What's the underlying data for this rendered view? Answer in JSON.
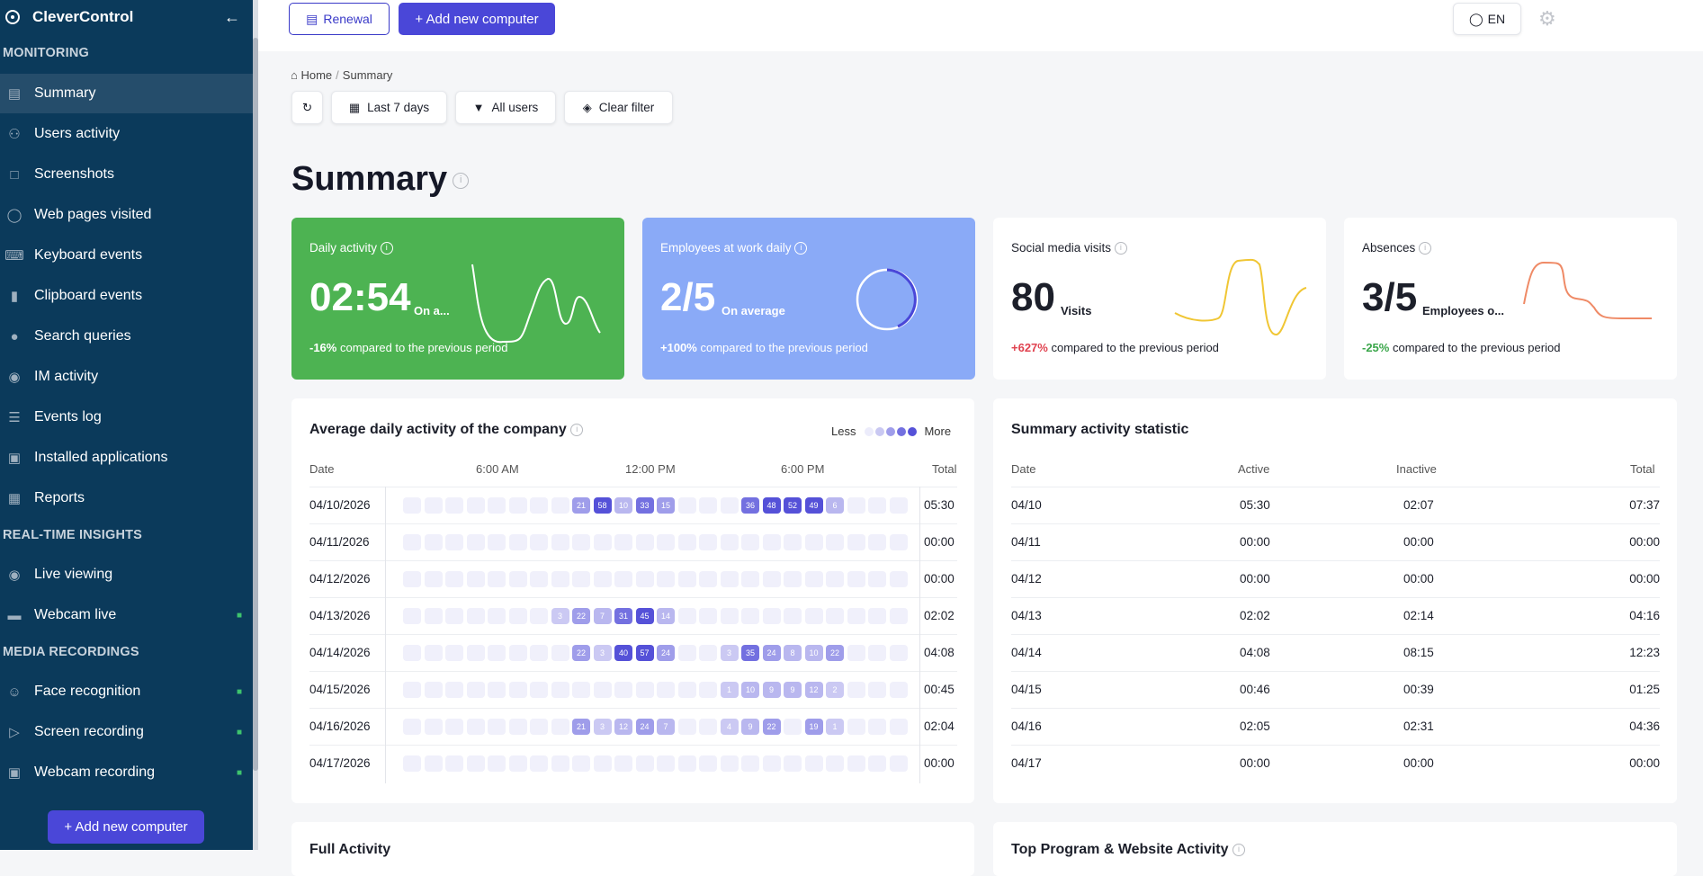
{
  "app": {
    "name": "CleverControl"
  },
  "sidebar": {
    "sections": [
      "MONITORING",
      "REAL-TIME INSIGHTS",
      "MEDIA RECORDINGS"
    ],
    "items": [
      {
        "label": "Summary"
      },
      {
        "label": "Users activity"
      },
      {
        "label": "Screenshots"
      },
      {
        "label": "Web pages visited"
      },
      {
        "label": "Keyboard events"
      },
      {
        "label": "Clipboard events"
      },
      {
        "label": "Search queries"
      },
      {
        "label": "IM activity"
      },
      {
        "label": "Events log"
      },
      {
        "label": "Installed applications"
      },
      {
        "label": "Reports"
      },
      {
        "label": "Live viewing"
      },
      {
        "label": "Webcam live"
      },
      {
        "label": "Face recognition"
      },
      {
        "label": "Screen recording"
      },
      {
        "label": "Webcam recording"
      }
    ],
    "add_button": "+ Add new computer"
  },
  "topbar": {
    "renewal": "Renewal",
    "add_computer": "+ Add new computer",
    "language": "EN"
  },
  "breadcrumb": {
    "home": "Home",
    "current": "Summary"
  },
  "filters": {
    "period": "Last 7 days",
    "users": "All users",
    "clear": "Clear filter"
  },
  "page": {
    "title": "Summary"
  },
  "cards": {
    "daily": {
      "title": "Daily activity",
      "value": "02:54",
      "unit": "On a...",
      "change": "-16%",
      "change_text": "compared to the previous period"
    },
    "employees": {
      "title": "Employees at work daily",
      "value": "2/5",
      "unit": "On average",
      "change": "+100%",
      "change_text": "compared to the previous period"
    },
    "social": {
      "title": "Social media visits",
      "value": "80",
      "unit": "Visits",
      "change": "+627%",
      "change_text": "compared to the previous period"
    },
    "absences": {
      "title": "Absences",
      "value": "3/5",
      "unit": "Employees o...",
      "change": "-25%",
      "change_text": "compared to the previous period"
    }
  },
  "heatmap": {
    "title": "Average daily activity of the company",
    "legend_less": "Less",
    "legend_more": "More",
    "head_date": "Date",
    "head_6am": "6:00 AM",
    "head_12pm": "12:00 PM",
    "head_6pm": "6:00 PM",
    "head_total": "Total",
    "rows": [
      {
        "date": "04/10/2026",
        "total": "05:30",
        "cells": [
          0,
          0,
          0,
          0,
          0,
          0,
          0,
          0,
          21,
          58,
          10,
          33,
          15,
          0,
          0,
          0,
          36,
          48,
          52,
          49,
          6,
          0,
          0,
          0
        ]
      },
      {
        "date": "04/11/2026",
        "total": "00:00",
        "cells": [
          0,
          0,
          0,
          0,
          0,
          0,
          0,
          0,
          0,
          0,
          0,
          0,
          0,
          0,
          0,
          0,
          0,
          0,
          0,
          0,
          0,
          0,
          0,
          0
        ]
      },
      {
        "date": "04/12/2026",
        "total": "00:00",
        "cells": [
          0,
          0,
          0,
          0,
          0,
          0,
          0,
          0,
          0,
          0,
          0,
          0,
          0,
          0,
          0,
          0,
          0,
          0,
          0,
          0,
          0,
          0,
          0,
          0
        ]
      },
      {
        "date": "04/13/2026",
        "total": "02:02",
        "cells": [
          0,
          0,
          0,
          0,
          0,
          0,
          0,
          3,
          22,
          7,
          31,
          45,
          14,
          0,
          0,
          0,
          0,
          0,
          0,
          0,
          0,
          0,
          0,
          0
        ]
      },
      {
        "date": "04/14/2026",
        "total": "04:08",
        "cells": [
          0,
          0,
          0,
          0,
          0,
          0,
          0,
          0,
          22,
          3,
          40,
          57,
          24,
          0,
          0,
          3,
          35,
          24,
          8,
          10,
          22,
          0,
          0,
          0
        ]
      },
      {
        "date": "04/15/2026",
        "total": "00:45",
        "cells": [
          0,
          0,
          0,
          0,
          0,
          0,
          0,
          0,
          0,
          0,
          0,
          0,
          0,
          0,
          0,
          1,
          10,
          9,
          9,
          12,
          2,
          0,
          0,
          0
        ]
      },
      {
        "date": "04/16/2026",
        "total": "02:04",
        "cells": [
          0,
          0,
          0,
          0,
          0,
          0,
          0,
          0,
          21,
          3,
          12,
          24,
          7,
          0,
          0,
          4,
          9,
          22,
          0,
          19,
          1,
          0,
          0,
          0
        ]
      },
      {
        "date": "04/17/2026",
        "total": "00:00",
        "cells": [
          0,
          0,
          0,
          0,
          0,
          0,
          0,
          0,
          0,
          0,
          0,
          0,
          0,
          0,
          0,
          0,
          0,
          0,
          0,
          0,
          0,
          0,
          0,
          0
        ]
      }
    ]
  },
  "statistic": {
    "title": "Summary activity statistic",
    "headers": [
      "Date",
      "Active",
      "Inactive",
      "Total"
    ],
    "rows": [
      [
        "04/10",
        "05:30",
        "02:07",
        "07:37"
      ],
      [
        "04/11",
        "00:00",
        "00:00",
        "00:00"
      ],
      [
        "04/12",
        "00:00",
        "00:00",
        "00:00"
      ],
      [
        "04/13",
        "02:02",
        "02:14",
        "04:16"
      ],
      [
        "04/14",
        "04:08",
        "08:15",
        "12:23"
      ],
      [
        "04/15",
        "00:46",
        "00:39",
        "01:25"
      ],
      [
        "04/16",
        "02:05",
        "02:31",
        "04:36"
      ],
      [
        "04/17",
        "00:00",
        "00:00",
        "00:00"
      ]
    ]
  },
  "bottom": {
    "left_title": "Full Activity",
    "right_title": "Top Program & Website Activity"
  },
  "colors": {
    "sidebar": "#0b3a5b",
    "accent": "#4a47d8",
    "green": "#4db352",
    "blue": "#8aaaf7",
    "red": "#e0424f",
    "greenText": "#3aa64a"
  }
}
